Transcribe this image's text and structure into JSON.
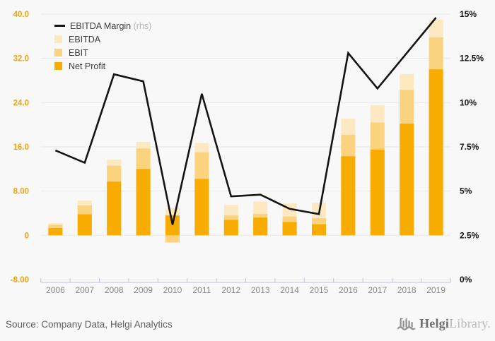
{
  "chart_data": {
    "type": "combo-bar-line",
    "categories": [
      "2006",
      "2007",
      "2008",
      "2009",
      "2010",
      "2011",
      "2012",
      "2013",
      "2014",
      "2015",
      "2016",
      "2017",
      "2018",
      "2019"
    ],
    "series": [
      {
        "name": "EBITDA Margin (rhs)",
        "type": "line",
        "axis": "right",
        "color": "#141414",
        "values": [
          7.3,
          6.6,
          11.6,
          11.2,
          3.1,
          10.5,
          4.7,
          4.8,
          4.0,
          3.7,
          12.8,
          10.8,
          12.8,
          14.8
        ]
      },
      {
        "name": "EBITDA",
        "type": "bar",
        "axis": "left",
        "color": "#FCE9C2",
        "values": [
          2.2,
          6.3,
          13.7,
          16.9,
          4.9,
          16.7,
          5.5,
          6.1,
          5.8,
          5.9,
          21.1,
          23.5,
          29.2,
          39.0
        ]
      },
      {
        "name": "EBIT",
        "type": "bar",
        "axis": "left",
        "color": "#FBD37F",
        "values": [
          1.9,
          5.4,
          12.6,
          15.7,
          -1.3,
          15.0,
          3.6,
          3.9,
          3.4,
          3.1,
          18.2,
          20.4,
          26.3,
          35.8
        ]
      },
      {
        "name": "Net Profit",
        "type": "bar",
        "axis": "left",
        "color": "#F8AC00",
        "values": [
          1.3,
          3.8,
          9.7,
          12.0,
          3.6,
          10.2,
          2.8,
          3.2,
          2.4,
          2.0,
          14.3,
          15.5,
          20.2,
          30.0
        ]
      }
    ],
    "left_axis": {
      "range": [
        -8,
        40
      ],
      "ticks": [
        {
          "label": "40.0",
          "value": 40
        },
        {
          "label": "32.0",
          "value": 32
        },
        {
          "label": "24.0",
          "value": 24
        },
        {
          "label": "16.0",
          "value": 16
        },
        {
          "label": "8.00",
          "value": 8
        },
        {
          "label": "0",
          "value": 0
        },
        {
          "label": "-8.00",
          "value": -8
        }
      ],
      "label_color": "#F0A30A"
    },
    "right_axis": {
      "range": [
        0,
        15
      ],
      "ticks": [
        {
          "label": "15%",
          "value": 15
        },
        {
          "label": "12.5%",
          "value": 12.5
        },
        {
          "label": "10%",
          "value": 10
        },
        {
          "label": "7.5%",
          "value": 7.5
        },
        {
          "label": "5%",
          "value": 5
        },
        {
          "label": "2.5%",
          "value": 2.5
        },
        {
          "label": "0%",
          "value": 0
        }
      ],
      "label_color": "#141414"
    },
    "grid": true,
    "grid_color": "#e8e8e8",
    "axis_line_color": "#bcc6d9",
    "year_label_color": "#878787",
    "legend_position": "top-left"
  },
  "legend": {
    "items": [
      {
        "label": "EBITDA Margin",
        "suffix": " (rhs)",
        "swatch": "line",
        "color": "#141414"
      },
      {
        "label": "EBITDA",
        "suffix": "",
        "swatch": "box",
        "color": "#FCE9C2"
      },
      {
        "label": "EBIT",
        "suffix": "",
        "swatch": "box",
        "color": "#FBD37F"
      },
      {
        "label": "Net Profit",
        "suffix": "",
        "swatch": "box",
        "color": "#F8AC00"
      }
    ]
  },
  "footer": {
    "source": "Source: Company Data, Helgi Analytics",
    "logo": {
      "primary": "Helgi",
      "secondary": "Library."
    }
  }
}
